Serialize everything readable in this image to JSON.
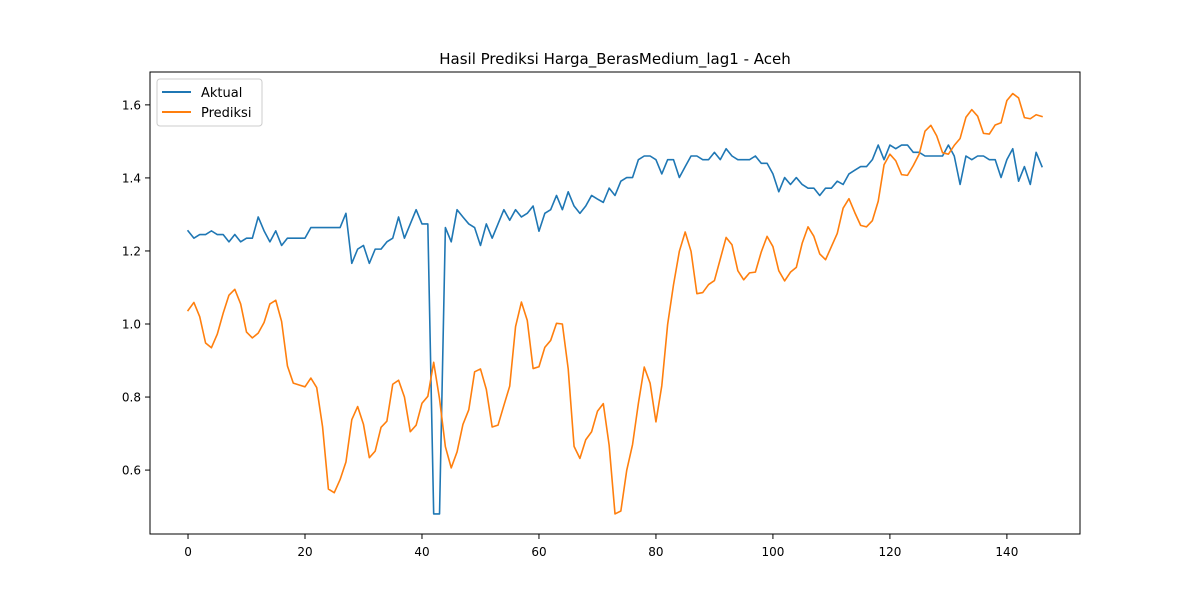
{
  "chart_data": {
    "type": "line",
    "title": "Hasil Prediksi Harga_BerasMedium_lag1 - Aceh",
    "xlabel": "",
    "ylabel": "",
    "xlim": [
      -6.5,
      152.5
    ],
    "ylim": [
      0.425,
      1.69
    ],
    "xticks": [
      0,
      20,
      40,
      60,
      80,
      100,
      120,
      140
    ],
    "yticks": [
      0.6,
      0.8,
      1.0,
      1.2,
      1.4,
      1.6
    ],
    "ytick_labels": [
      "0.6",
      "0.8",
      "1.0",
      "1.2",
      "1.4",
      "1.6"
    ],
    "legend_position": "upper-left",
    "grid": false,
    "series": [
      {
        "name": "Aktual",
        "color": "#1f77b4",
        "values": [
          1.255,
          1.235,
          1.245,
          1.245,
          1.255,
          1.245,
          1.245,
          1.225,
          1.245,
          1.225,
          1.235,
          1.235,
          1.293,
          1.255,
          1.225,
          1.255,
          1.215,
          1.235,
          1.235,
          1.235,
          1.235,
          1.264,
          1.264,
          1.264,
          1.264,
          1.264,
          1.264,
          1.303,
          1.166,
          1.205,
          1.215,
          1.166,
          1.205,
          1.205,
          1.225,
          1.235,
          1.293,
          1.235,
          1.274,
          1.313,
          1.274,
          1.274,
          0.48,
          0.48,
          1.264,
          1.225,
          1.313,
          1.293,
          1.274,
          1.264,
          1.215,
          1.274,
          1.235,
          1.274,
          1.313,
          1.284,
          1.313,
          1.293,
          1.303,
          1.323,
          1.254,
          1.303,
          1.313,
          1.352,
          1.313,
          1.362,
          1.323,
          1.303,
          1.323,
          1.352,
          1.342,
          1.333,
          1.372,
          1.352,
          1.391,
          1.401,
          1.401,
          1.45,
          1.46,
          1.46,
          1.45,
          1.411,
          1.45,
          1.45,
          1.401,
          1.431,
          1.46,
          1.46,
          1.45,
          1.45,
          1.47,
          1.45,
          1.48,
          1.46,
          1.45,
          1.45,
          1.45,
          1.46,
          1.44,
          1.44,
          1.411,
          1.362,
          1.401,
          1.382,
          1.401,
          1.382,
          1.372,
          1.372,
          1.352,
          1.372,
          1.372,
          1.391,
          1.382,
          1.411,
          1.421,
          1.431,
          1.431,
          1.45,
          1.49,
          1.45,
          1.49,
          1.48,
          1.49,
          1.49,
          1.47,
          1.47,
          1.46,
          1.46,
          1.46,
          1.46,
          1.49,
          1.46,
          1.382,
          1.46,
          1.45,
          1.46,
          1.46,
          1.45,
          1.45,
          1.401,
          1.45,
          1.48,
          1.391,
          1.431,
          1.382,
          1.47,
          1.431
        ]
      },
      {
        "name": "Prediksi",
        "color": "#ff7f0e",
        "values": [
          1.037,
          1.059,
          1.02,
          0.948,
          0.935,
          0.972,
          1.029,
          1.079,
          1.095,
          1.055,
          0.978,
          0.962,
          0.975,
          1.004,
          1.055,
          1.065,
          1.007,
          0.885,
          0.838,
          0.833,
          0.828,
          0.852,
          0.826,
          0.719,
          0.548,
          0.538,
          0.574,
          0.622,
          0.738,
          0.774,
          0.725,
          0.634,
          0.652,
          0.717,
          0.734,
          0.835,
          0.846,
          0.8,
          0.705,
          0.723,
          0.783,
          0.802,
          0.895,
          0.795,
          0.664,
          0.606,
          0.65,
          0.725,
          0.765,
          0.869,
          0.877,
          0.821,
          0.718,
          0.723,
          0.777,
          0.83,
          0.993,
          1.06,
          1.01,
          0.878,
          0.883,
          0.936,
          0.955,
          1.002,
          1.0,
          0.877,
          0.665,
          0.632,
          0.683,
          0.705,
          0.761,
          0.782,
          0.668,
          0.48,
          0.488,
          0.599,
          0.67,
          0.783,
          0.882,
          0.838,
          0.732,
          0.831,
          0.999,
          1.107,
          1.199,
          1.252,
          1.199,
          1.083,
          1.086,
          1.108,
          1.119,
          1.178,
          1.237,
          1.217,
          1.146,
          1.121,
          1.14,
          1.142,
          1.197,
          1.24,
          1.212,
          1.146,
          1.118,
          1.142,
          1.155,
          1.221,
          1.266,
          1.24,
          1.192,
          1.176,
          1.212,
          1.248,
          1.317,
          1.343,
          1.305,
          1.27,
          1.266,
          1.283,
          1.336,
          1.436,
          1.465,
          1.447,
          1.409,
          1.407,
          1.434,
          1.465,
          1.528,
          1.544,
          1.515,
          1.469,
          1.465,
          1.489,
          1.508,
          1.566,
          1.587,
          1.569,
          1.522,
          1.52,
          1.545,
          1.551,
          1.612,
          1.631,
          1.619,
          1.565,
          1.562,
          1.573,
          1.568
        ]
      }
    ]
  }
}
